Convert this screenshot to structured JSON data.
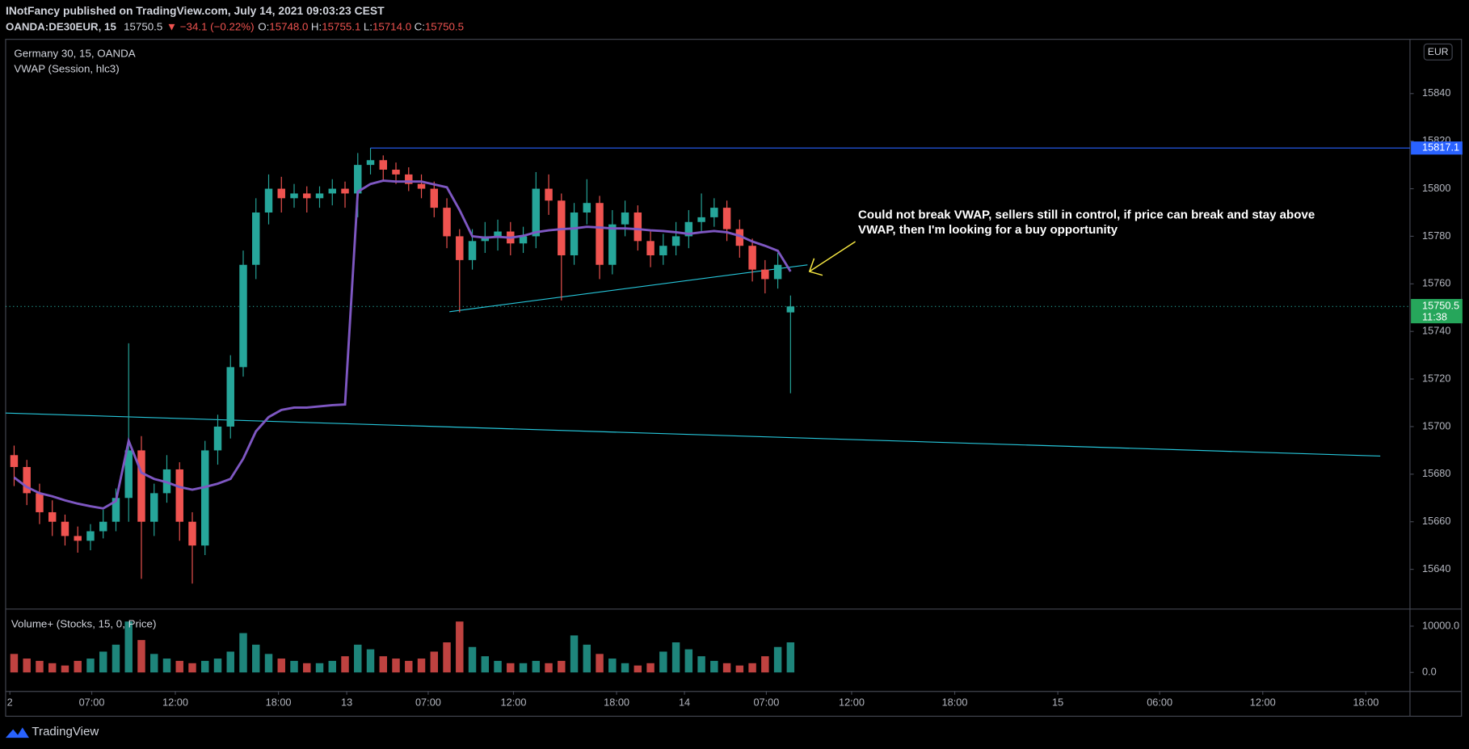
{
  "header": {
    "line1": "INotFancy published on TradingView.com, July 14, 2021 09:03:23 CEST",
    "symbol": "OANDA:DE30EUR, 15",
    "last": "15750.5",
    "change": "▼ −34.1 (−0.22%)",
    "ohlc": [
      {
        "key": "O:",
        "value": "15748.0"
      },
      {
        "key": "H:",
        "value": "15755.1"
      },
      {
        "key": "L:",
        "value": "15714.0"
      },
      {
        "key": "C:",
        "value": "15750.5"
      }
    ]
  },
  "chart_data": {
    "type": "candlestick",
    "title": "Germany 30, 15, OANDA",
    "indicator": "VWAP (Session, hlc3)",
    "currency": "EUR",
    "countdown": "11:38",
    "up_color": "#26a69a",
    "down_color": "#ef5350",
    "grid": false,
    "x": [
      2,
      5,
      8,
      11,
      14,
      17,
      20,
      23,
      26,
      29,
      32,
      35,
      38,
      41,
      44,
      47,
      50,
      53,
      56,
      59,
      62,
      65,
      68,
      71,
      74,
      77,
      80,
      83,
      86,
      89,
      92,
      95,
      98,
      101,
      104,
      107,
      110,
      113,
      116,
      119,
      122,
      125,
      128,
      131,
      134,
      137,
      140,
      143,
      146,
      149,
      152,
      155,
      158,
      161,
      164,
      167,
      170,
      173,
      176,
      179,
      182,
      185
    ],
    "open": [
      15688,
      15683,
      15672,
      15664,
      15660,
      15654,
      15652,
      15656,
      15660,
      15670,
      15690,
      15660,
      15672,
      15682,
      15660,
      15650,
      15690,
      15700,
      15725,
      15768,
      15790,
      15800,
      15796,
      15798,
      15796,
      15798,
      15800,
      15798,
      15810,
      15812,
      15808,
      15806,
      15802,
      15800,
      15792,
      15780,
      15770,
      15778,
      15780,
      15782,
      15777,
      15780,
      15800,
      15795,
      15772,
      15790,
      15794,
      15768,
      15785,
      15790,
      15778,
      15772,
      15776,
      15780,
      15786,
      15788,
      15792,
      15783,
      15776,
      15766,
      15762,
      15748
    ],
    "high": [
      15692,
      15686,
      15676,
      15669,
      15663,
      15658,
      15659,
      15665,
      15674,
      15735,
      15696,
      15676,
      15688,
      15685,
      15664,
      15694,
      15705,
      15730,
      15774,
      15796,
      15806,
      15805,
      15802,
      15801,
      15801,
      15804,
      15803,
      15815,
      15817.1,
      15814,
      15811,
      15809,
      15806,
      15803,
      15796,
      15783,
      15783,
      15786,
      15787,
      15786,
      15784,
      15807,
      15806,
      15798,
      15794,
      15804,
      15797,
      15791,
      15795,
      15793,
      15782,
      15781,
      15786,
      15791,
      15798,
      15796,
      15795,
      15787,
      15779,
      15770,
      15773,
      15755.1
    ],
    "low": [
      15675,
      15667,
      15659,
      15654,
      15650,
      15647,
      15648,
      15653,
      15656,
      15660,
      15636,
      15654,
      15668,
      15652,
      15634,
      15646,
      15684,
      15695,
      15721,
      15762,
      15785,
      15790,
      15792,
      15790,
      15792,
      15793,
      15792,
      15788,
      15806,
      15803,
      15802,
      15799,
      15796,
      15788,
      15775,
      15748,
      15766,
      15773,
      15774,
      15772,
      15773,
      15775,
      15789,
      15753,
      15768,
      15785,
      15762,
      15764,
      15780,
      15774,
      15767,
      15768,
      15772,
      15775,
      15782,
      15784,
      15778,
      15771,
      15761,
      15756,
      15758,
      15714
    ],
    "close": [
      15683,
      15672,
      15664,
      15660,
      15654,
      15652,
      15656,
      15660,
      15670,
      15690,
      15660,
      15672,
      15682,
      15660,
      15650,
      15690,
      15700,
      15725,
      15768,
      15790,
      15800,
      15796,
      15798,
      15796,
      15798,
      15800,
      15798,
      15810,
      15812,
      15808,
      15806,
      15802,
      15800,
      15792,
      15780,
      15770,
      15778,
      15780,
      15782,
      15777,
      15780,
      15800,
      15795,
      15772,
      15790,
      15794,
      15768,
      15785,
      15790,
      15778,
      15772,
      15776,
      15780,
      15786,
      15788,
      15792,
      15783,
      15776,
      15766,
      15762,
      15768,
      15750.5
    ],
    "vwap": {
      "color": "#7e57c2",
      "values": [
        15678.6,
        15674.6,
        15672,
        15670.7,
        15669,
        15667.6,
        15666.5,
        15665.6,
        15668.7,
        15694,
        15680.6,
        15678,
        15676.6,
        15674.6,
        15673.5,
        15674.6,
        15676,
        15678,
        15686.5,
        15698,
        15704,
        15707,
        15708,
        15708,
        15708.5,
        15709,
        15709.3,
        15798.7,
        15802,
        15803.4,
        15803,
        15803,
        15803,
        15801.8,
        15800.6,
        15791,
        15780,
        15779.4,
        15779.8,
        15779.4,
        15780.2,
        15781.7,
        15782.5,
        15783,
        15783.3,
        15784,
        15783.7,
        15783.3,
        15783.3,
        15783,
        15782.5,
        15782.2,
        15781.7,
        15781,
        15781.7,
        15782.2,
        15781.7,
        15780.2,
        15777.8,
        15776,
        15773.9,
        15765.2
      ]
    },
    "hlines": [
      {
        "value": 15817.1,
        "color": "#2962ff"
      }
    ],
    "trendlines": [
      {
        "x": [
          0,
          324
        ],
        "y": [
          15705.7,
          15687.6
        ],
        "color": "#26c6da"
      },
      {
        "x": [
          104.6,
          189
        ],
        "y": [
          15748.3,
          15768
        ],
        "color": "#26c6da"
      }
    ],
    "annotation": [
      "Could not break VWAP, sellers still in control, if price can break and stay above",
      "VWAP, then I'm looking for a buy opportunity"
    ],
    "xlim": [
      0,
      331
    ],
    "xticks": [
      {
        "value": 1,
        "label": "2"
      },
      {
        "value": 20.3,
        "label": "07:00"
      },
      {
        "value": 40,
        "label": "12:00"
      },
      {
        "value": 64.3,
        "label": "18:00"
      },
      {
        "value": 80.4,
        "label": "13"
      },
      {
        "value": 99.6,
        "label": "07:00"
      },
      {
        "value": 119.7,
        "label": "12:00"
      },
      {
        "value": 144,
        "label": "18:00"
      },
      {
        "value": 160,
        "label": "14"
      },
      {
        "value": 179.3,
        "label": "07:00"
      },
      {
        "value": 199.4,
        "label": "12:00"
      },
      {
        "value": 223.7,
        "label": "18:00"
      },
      {
        "value": 248,
        "label": "15"
      },
      {
        "value": 272,
        "label": "06:00"
      },
      {
        "value": 296.3,
        "label": "12:00"
      },
      {
        "value": 320.6,
        "label": "18:00"
      }
    ],
    "ylim": [
      15623.5,
      15862.8
    ],
    "yticks": [
      15640,
      15660,
      15680,
      15700,
      15720,
      15740,
      15760,
      15780,
      15800,
      15820,
      15840
    ],
    "volume": {
      "title": "Volume+ (Stocks, 15, 0, Price)",
      "values": [
        4000,
        3000,
        2500,
        2000,
        1500,
        2500,
        3000,
        4500,
        6000,
        11000,
        7000,
        4000,
        3000,
        2500,
        2000,
        2500,
        3000,
        4500,
        8500,
        6000,
        4000,
        3000,
        2500,
        2000,
        2000,
        2500,
        3500,
        6000,
        5000,
        3500,
        3000,
        2500,
        3000,
        4500,
        6500,
        11000,
        5500,
        3500,
        2500,
        2000,
        2000,
        2500,
        2000,
        2500,
        8000,
        6000,
        4000,
        3000,
        2000,
        1500,
        2000,
        4500,
        6500,
        5000,
        3500,
        2500,
        2000,
        1500,
        2000,
        3500,
        5500,
        6500
      ],
      "ylim": [
        -4000,
        13600
      ],
      "yticks": [
        {
          "value": 10000,
          "label": "10000.0"
        },
        {
          "value": 0,
          "label": "0.0"
        }
      ]
    }
  },
  "footer": {
    "brand": "TradingView"
  }
}
